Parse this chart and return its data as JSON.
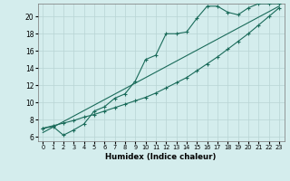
{
  "xlabel": "Humidex (Indice chaleur)",
  "background_color": "#d4eded",
  "grid_color": "#b8d4d4",
  "line_color": "#1a6b5a",
  "xlim": [
    -0.5,
    23.5
  ],
  "ylim": [
    5.5,
    21.5
  ],
  "yticks": [
    6,
    8,
    10,
    12,
    14,
    16,
    18,
    20
  ],
  "xticks": [
    0,
    1,
    2,
    3,
    4,
    5,
    6,
    7,
    8,
    9,
    10,
    11,
    12,
    13,
    14,
    15,
    16,
    17,
    18,
    19,
    20,
    21,
    22,
    23
  ],
  "line1_x": [
    0,
    1,
    2,
    3,
    4,
    5,
    6,
    7,
    8,
    9,
    10,
    11,
    12,
    13,
    14,
    15,
    16,
    17,
    18,
    19,
    20,
    21,
    22,
    23
  ],
  "line1_y": [
    7.0,
    7.2,
    6.2,
    6.8,
    7.5,
    9.0,
    9.5,
    10.5,
    11.0,
    12.5,
    15.0,
    15.5,
    18.0,
    18.0,
    18.2,
    19.8,
    21.2,
    21.2,
    20.5,
    20.2,
    21.0,
    21.5,
    21.5,
    21.5
  ],
  "line2_x": [
    0,
    1,
    2,
    3,
    4,
    5,
    6,
    7,
    8,
    9,
    10,
    11,
    12,
    13,
    14,
    15,
    16,
    17,
    18,
    19,
    20,
    21,
    22,
    23
  ],
  "line2_y": [
    7.0,
    7.3,
    7.6,
    7.9,
    8.3,
    8.6,
    9.0,
    9.4,
    9.8,
    10.2,
    10.6,
    11.1,
    11.7,
    12.3,
    12.9,
    13.7,
    14.5,
    15.3,
    16.2,
    17.1,
    18.0,
    19.0,
    20.0,
    21.0
  ],
  "line3_x": [
    0,
    23
  ],
  "line3_y": [
    6.5,
    21.2
  ]
}
